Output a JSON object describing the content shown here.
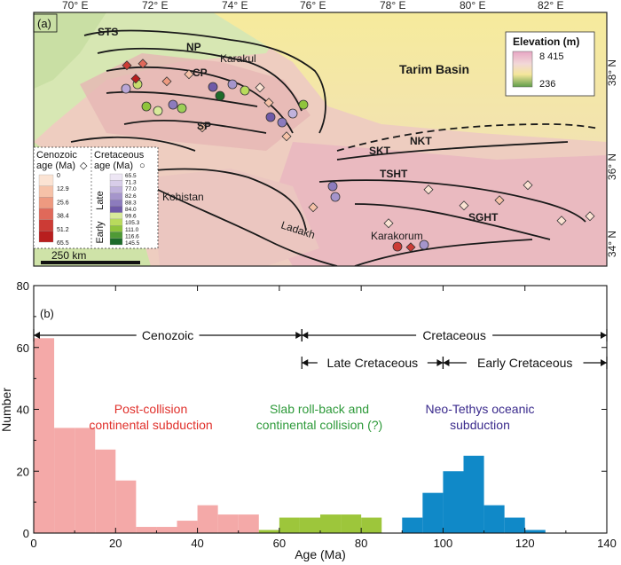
{
  "map_panel": {
    "label": "(a)",
    "lon_ticks": [
      "70° E",
      "72° E",
      "74° E",
      "76° E",
      "78° E",
      "80° E",
      "82° E"
    ],
    "lat_ticks": [
      "38° N",
      "36° N",
      "34° N"
    ],
    "places": [
      {
        "name": "STS",
        "bold": true
      },
      {
        "name": "NP",
        "bold": true
      },
      {
        "name": "Karakul",
        "bold": false
      },
      {
        "name": "CP",
        "bold": true
      },
      {
        "name": "SP",
        "bold": true
      },
      {
        "name": "Tarim Basin",
        "bold": true
      },
      {
        "name": "SKT",
        "bold": true
      },
      {
        "name": "NKT",
        "bold": true
      },
      {
        "name": "TSHT",
        "bold": true
      },
      {
        "name": "SGHT",
        "bold": true
      },
      {
        "name": "Kohistan",
        "bold": false
      },
      {
        "name": "Ladakh",
        "bold": false
      },
      {
        "name": "Karakorum",
        "bold": false
      }
    ],
    "elevation_legend": {
      "title": "Elevation (m)",
      "max": "8 415",
      "min": "236"
    },
    "cenozoic_legend": {
      "title_line1": "Cenozoic",
      "title_line2": "age (Ma)",
      "symbol": "◇",
      "values": [
        "0",
        "12.9",
        "25.6",
        "38.4",
        "51.2",
        "65.5"
      ],
      "colors": [
        "#fbe3d3",
        "#f6c2a8",
        "#ee9a80",
        "#e0695a",
        "#cc3b35",
        "#b81e1e"
      ]
    },
    "cretaceous_legend": {
      "title_line1": "Cretaceous",
      "title_line2": "age (Ma)",
      "symbol": "○",
      "late_label": "Late",
      "early_label": "Early",
      "values": [
        "65.5",
        "71.3",
        "77.0",
        "82.6",
        "88.3",
        "84.0",
        "99.6",
        "105.3",
        "111.0",
        "116.6",
        "145.5"
      ],
      "colors": [
        "#ede6f4",
        "#d8cde9",
        "#c0b2dc",
        "#a595cb",
        "#8c7bbd",
        "#6f5aa8",
        "#d8ea9a",
        "#b9db5c",
        "#8fc43c",
        "#4f9a35",
        "#1d6b2a"
      ]
    },
    "scale_bar": "250 km"
  },
  "chart_data": {
    "type": "bar",
    "panel_label": "(b)",
    "xlabel": "Age (Ma)",
    "ylabel": "Number",
    "xlim": [
      0,
      140
    ],
    "ylim": [
      0,
      80
    ],
    "x_ticks": [
      "0",
      "20",
      "40",
      "60",
      "80",
      "100",
      "120",
      "140"
    ],
    "y_ticks": [
      "0",
      "20",
      "40",
      "60",
      "80"
    ],
    "bin_width": 5,
    "series": [
      {
        "color": "#f4a9a8",
        "bins": [
          {
            "start": 0,
            "value": 63
          },
          {
            "start": 5,
            "value": 34
          },
          {
            "start": 10,
            "value": 34
          },
          {
            "start": 15,
            "value": 27
          },
          {
            "start": 20,
            "value": 17
          },
          {
            "start": 25,
            "value": 2
          },
          {
            "start": 30,
            "value": 2
          },
          {
            "start": 35,
            "value": 4
          },
          {
            "start": 40,
            "value": 9
          },
          {
            "start": 45,
            "value": 6
          },
          {
            "start": 50,
            "value": 6
          }
        ]
      },
      {
        "color": "#9dc63b",
        "bins": [
          {
            "start": 55,
            "value": 1
          },
          {
            "start": 60,
            "value": 5
          },
          {
            "start": 65,
            "value": 5
          },
          {
            "start": 70,
            "value": 6
          },
          {
            "start": 75,
            "value": 6
          },
          {
            "start": 80,
            "value": 5
          }
        ]
      },
      {
        "color": "#1089c8",
        "bins": [
          {
            "start": 90,
            "value": 5
          },
          {
            "start": 95,
            "value": 13
          },
          {
            "start": 100,
            "value": 20
          },
          {
            "start": 105,
            "value": 25
          },
          {
            "start": 110,
            "value": 9
          },
          {
            "start": 115,
            "value": 5
          },
          {
            "start": 120,
            "value": 1
          }
        ]
      }
    ],
    "period_annotations": [
      {
        "label": "Cenozoic",
        "from": 0,
        "to": 65.5,
        "row": 1
      },
      {
        "label": "Cretaceous",
        "from": 65.5,
        "to": 140,
        "row": 1
      },
      {
        "label": "Late Cretaceous",
        "from": 65.5,
        "to": 100,
        "row": 2
      },
      {
        "label": "Early Cretaceous",
        "from": 100,
        "to": 140,
        "row": 2
      }
    ],
    "annotations": [
      {
        "line1": "Post-collision",
        "line2": "continental subduction",
        "color": "#e0302b"
      },
      {
        "line1": "Slab roll-back and",
        "line2": "continental collision (?)",
        "color": "#2e9a3a"
      },
      {
        "line1": "Neo-Tethys oceanic",
        "line2": "subduction",
        "color": "#3a2a8c"
      }
    ]
  }
}
